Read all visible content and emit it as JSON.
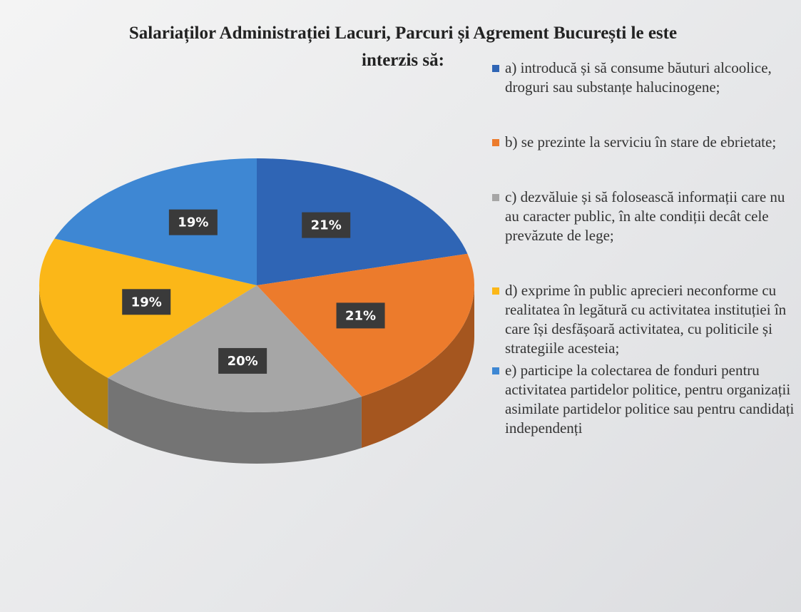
{
  "chart_data": {
    "type": "pie",
    "title": "Salariaților Administrației Lacuri, Parcuri și Agrement București le este interzis să:",
    "categories": [
      "a) introducă și să consume băuturi alcoolice, droguri sau substanțe halucinogene;",
      "b) se prezinte la serviciu în stare de ebrietate;",
      "c) dezvăluie și să folosească informații care nu au caracter public, în alte condiții decât cele prevăzute de lege;",
      "d) exprime în public aprecieri neconforme cu realitatea în legătură cu activitatea instituției în care își desfășoară activitatea, cu politicile și strategiile acesteia;",
      "e) participe la colectarea de fonduri pentru activitatea partidelor politice, pentru organizații asimilate partidelor politice sau pentru candidați independenți"
    ],
    "values": [
      21,
      21,
      20,
      19,
      19
    ],
    "value_labels": [
      "21%",
      "21%",
      "20%",
      "19%",
      "19%"
    ],
    "colors": [
      "#2f65b5",
      "#ec7b2c",
      "#a6a6a6",
      "#fbb718",
      "#3e87d3"
    ]
  }
}
